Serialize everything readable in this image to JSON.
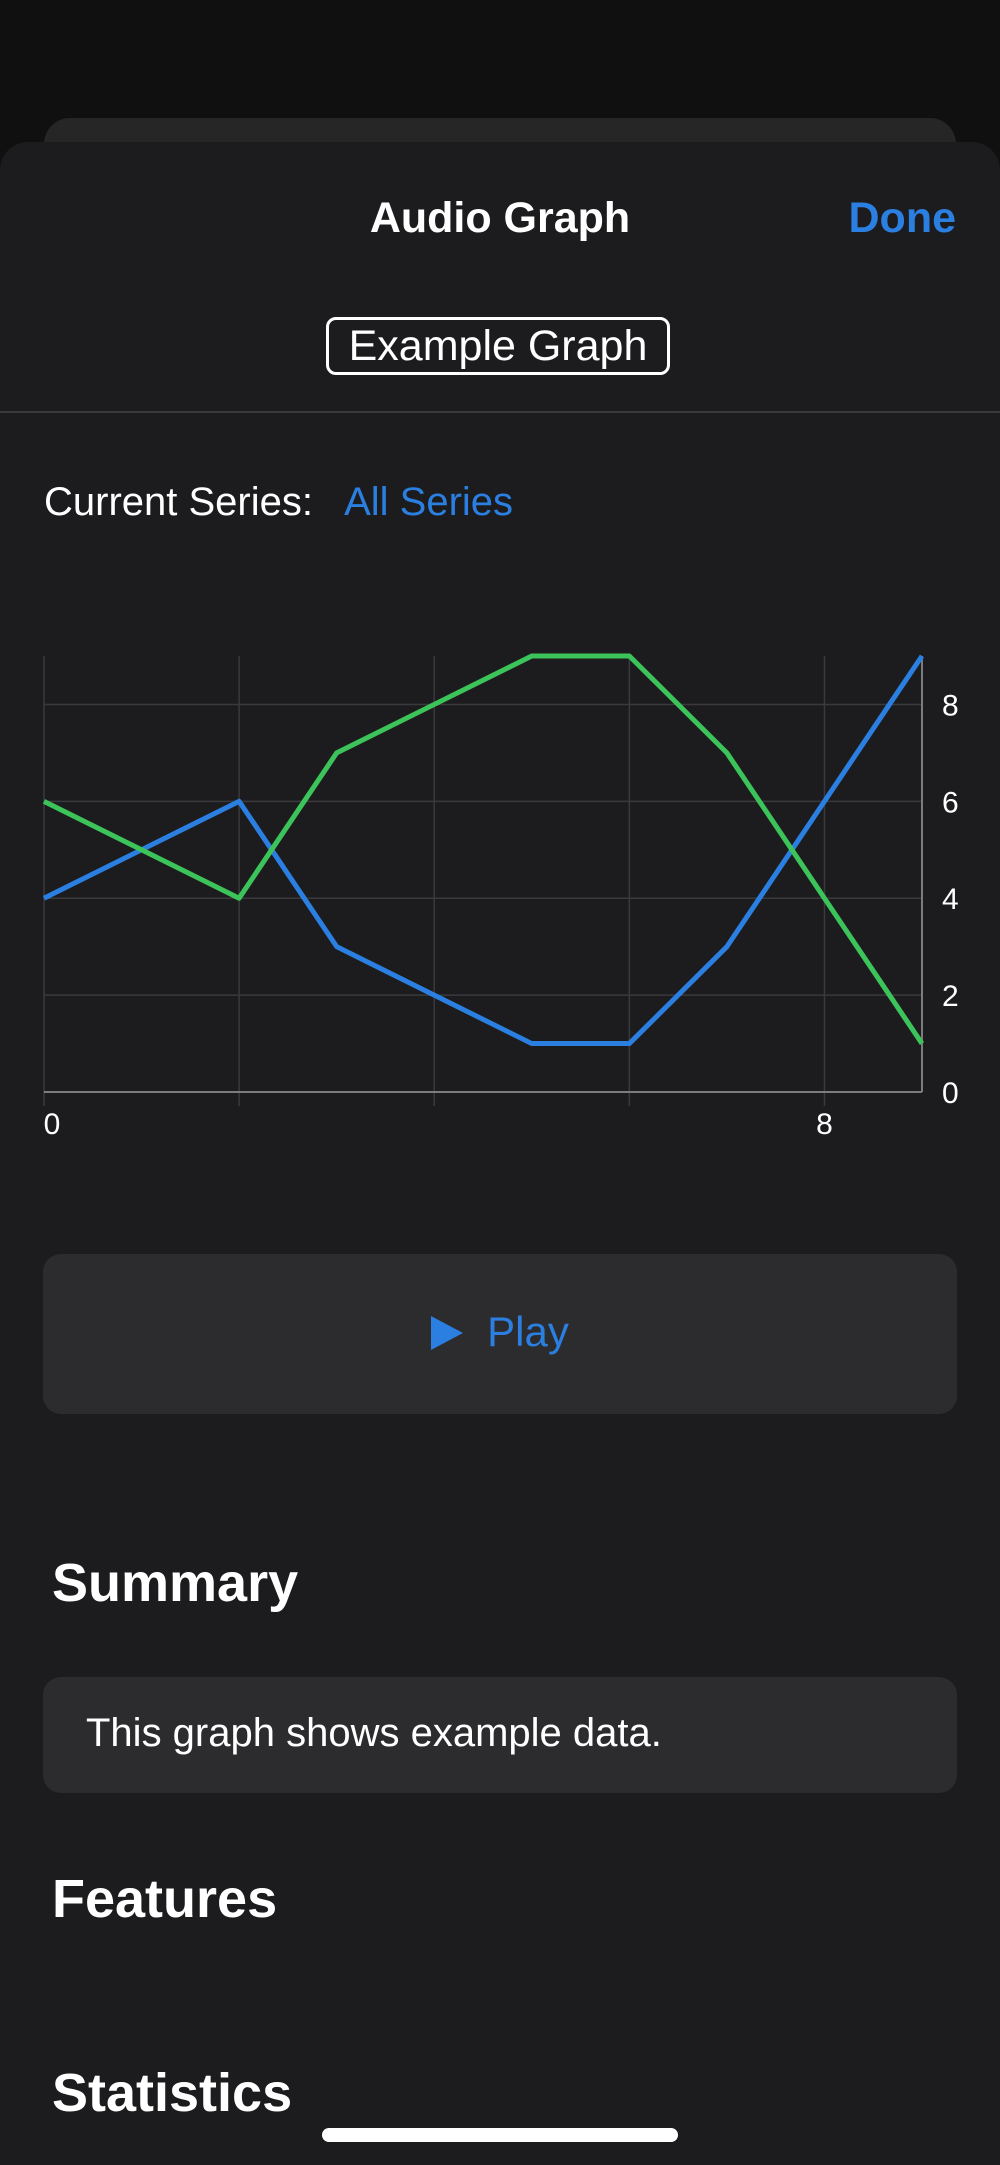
{
  "header": {
    "title": "Audio Graph",
    "done_label": "Done"
  },
  "graph_title": "Example Graph",
  "series_selector": {
    "label": "Current Series:",
    "value": "All Series"
  },
  "play": {
    "label": "Play",
    "icon": "play-icon"
  },
  "sections": {
    "summary_heading": "Summary",
    "summary_text": "This graph shows example data.",
    "features_heading": "Features",
    "statistics_heading": "Statistics"
  },
  "colors": {
    "accent": "#2a7fe0",
    "series_blue": "#2a7fe0",
    "series_green": "#3cc35a",
    "background": "#1c1c1e"
  },
  "chart_data": {
    "type": "line",
    "x": [
      0,
      2,
      3,
      4,
      5,
      6,
      7,
      8,
      9
    ],
    "series": [
      {
        "color": "#2a7fe0",
        "values": [
          4,
          6,
          3,
          2,
          1,
          1,
          3,
          6,
          9
        ]
      },
      {
        "color": "#3cc35a",
        "values": [
          6,
          4,
          7,
          8,
          9,
          9,
          7,
          4,
          1
        ]
      }
    ],
    "xlim": [
      0,
      9
    ],
    "ylim": [
      0,
      9
    ],
    "x_tick_labels": [
      "0",
      "8"
    ],
    "x_tick_values": [
      0,
      8
    ],
    "y_tick_labels": [
      "0",
      "2",
      "4",
      "6",
      "8"
    ],
    "y_tick_values": [
      0,
      2,
      4,
      6,
      8
    ],
    "grid": true,
    "y_axis_side": "right"
  }
}
